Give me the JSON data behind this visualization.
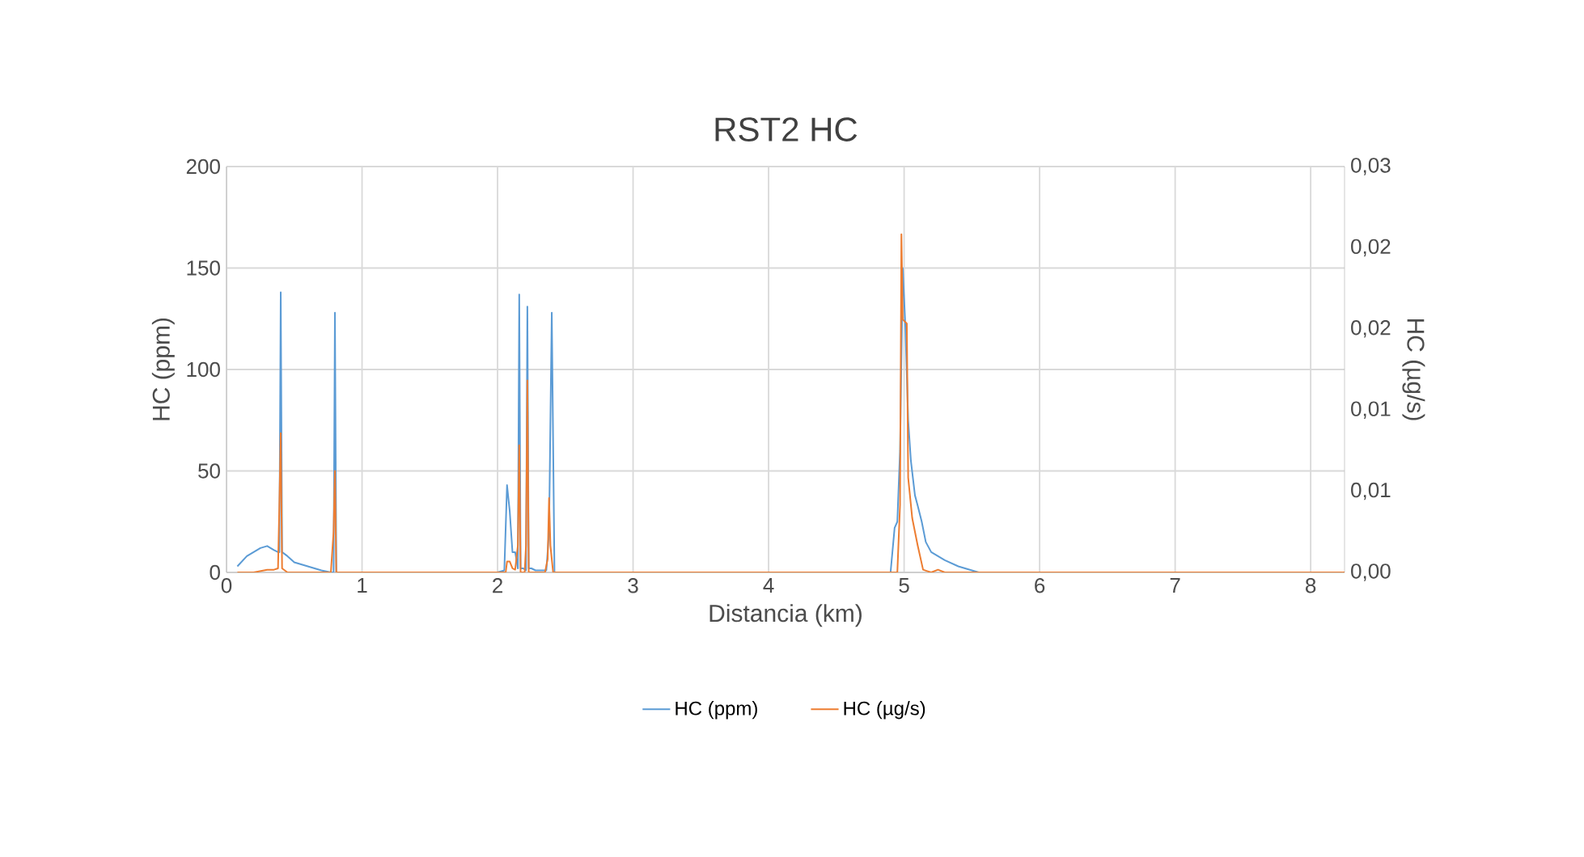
{
  "chart_data": {
    "type": "line",
    "title": "RST2 HC",
    "xlabel": "Distancia (km)",
    "ylabel": "HC (ppm)",
    "y2label": "HC (µg/s)",
    "xlim": [
      0,
      8.25
    ],
    "xticks": [
      0,
      1,
      2,
      3,
      4,
      5,
      6,
      7,
      8
    ],
    "ylim": [
      0,
      200
    ],
    "yticks": [
      0,
      50,
      100,
      150,
      200
    ],
    "y2lim": [
      0,
      0.03
    ],
    "y2ticks": [
      {
        "value": 0,
        "label": "0,00"
      },
      {
        "value": 0.006,
        "label": "0,01"
      },
      {
        "value": 0.012,
        "label": "0,01"
      },
      {
        "value": 0.018,
        "label": "0,02"
      },
      {
        "value": 0.024,
        "label": "0,02"
      },
      {
        "value": 0.03,
        "label": "0,03"
      }
    ],
    "grid": true,
    "legend": "bottom",
    "marker": "none",
    "line_style": "solid",
    "series": [
      {
        "name": "HC (ppm)",
        "color": "#5b9bd5",
        "axis": "y",
        "x": [
          0.08,
          0.15,
          0.25,
          0.3,
          0.35,
          0.38,
          0.39,
          0.4,
          0.41,
          0.45,
          0.5,
          0.6,
          0.7,
          0.77,
          0.79,
          0.8,
          0.81,
          0.9,
          2.0,
          2.05,
          2.07,
          2.09,
          2.11,
          2.13,
          2.15,
          2.16,
          2.17,
          2.19,
          2.21,
          2.22,
          2.23,
          2.25,
          2.28,
          2.32,
          2.36,
          2.38,
          2.4,
          2.42,
          2.5,
          4.9,
          4.93,
          4.95,
          4.97,
          4.99,
          5.01,
          5.03,
          5.05,
          5.08,
          5.1,
          5.13,
          5.16,
          5.2,
          5.3,
          5.4,
          5.5,
          5.55,
          6.0,
          8.25
        ],
        "values": [
          3,
          8,
          12,
          13,
          11,
          10,
          10,
          138,
          10,
          8,
          5,
          3,
          1,
          0,
          0,
          128,
          0,
          0,
          0,
          1,
          43,
          30,
          10,
          10,
          2,
          137,
          2,
          2,
          1,
          131,
          2,
          2,
          1,
          1,
          1,
          20,
          128,
          0,
          0,
          0,
          22,
          25,
          60,
          150,
          120,
          75,
          55,
          38,
          33,
          25,
          15,
          10,
          6,
          3,
          1,
          0,
          0,
          0
        ]
      },
      {
        "name": "HC (µg/s)",
        "color": "#ed7d31",
        "axis": "y2",
        "x": [
          0.08,
          0.2,
          0.3,
          0.35,
          0.38,
          0.39,
          0.4,
          0.41,
          0.45,
          0.77,
          0.79,
          0.8,
          0.81,
          0.9,
          2.0,
          2.06,
          2.07,
          2.09,
          2.11,
          2.13,
          2.15,
          2.16,
          2.17,
          2.2,
          2.21,
          2.22,
          2.23,
          2.26,
          2.35,
          2.37,
          2.38,
          2.39,
          2.41,
          2.5,
          4.95,
          4.97,
          4.98,
          4.99,
          5.01,
          5.02,
          5.03,
          5.06,
          5.1,
          5.14,
          5.17,
          5.2,
          5.25,
          5.3,
          8.25
        ],
        "values": [
          0,
          0,
          0.0002,
          0.0002,
          0.0003,
          0.005,
          0.0103,
          0.0003,
          0,
          0,
          0.003,
          0.0075,
          0,
          0,
          0,
          0,
          0.0008,
          0.0008,
          0.0003,
          0.0002,
          0.002,
          0.0094,
          0,
          0,
          0.002,
          0.0142,
          0,
          0,
          0,
          0.001,
          0.0055,
          0.002,
          0,
          0,
          0,
          0.005,
          0.025,
          0.0187,
          0.0185,
          0.0184,
          0.007,
          0.004,
          0.002,
          0.0002,
          0.0001,
          0,
          0.0002,
          0,
          0
        ]
      }
    ]
  }
}
